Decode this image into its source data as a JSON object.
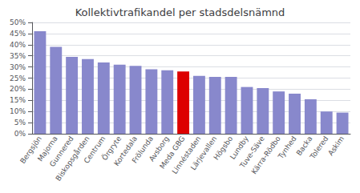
{
  "chart_data": {
    "type": "bar",
    "title": "Kollektivtrafikandel per stadsdelsnämnd",
    "categories": [
      "Bergsjön",
      "Majorna",
      "Gunnered",
      "Biskopsgården",
      "Centrum",
      "Örgryte",
      "Kortedala",
      "Frölunda",
      "Avsborg",
      "Meda GBG",
      "Linnéstaden",
      "Lärjevallen",
      "Högsbo",
      "Lundby",
      "Tuve-Säve",
      "Kärra-Rödbo",
      "Tynhed",
      "Backa",
      "Tolered",
      "Askim"
    ],
    "values": [
      46,
      39,
      34.5,
      33.5,
      32,
      31,
      30.5,
      29,
      28.5,
      28,
      26,
      25.5,
      25.5,
      21,
      20.5,
      19,
      18,
      15.5,
      10,
      9.5
    ],
    "colors": [
      "#8888cc",
      "#8888cc",
      "#8888cc",
      "#8888cc",
      "#8888cc",
      "#8888cc",
      "#8888cc",
      "#8888cc",
      "#8888cc",
      "#dd0000",
      "#8888cc",
      "#8888cc",
      "#8888cc",
      "#8888cc",
      "#8888cc",
      "#8888cc",
      "#8888cc",
      "#8888cc",
      "#8888cc",
      "#8888cc"
    ],
    "ylim": [
      0,
      50
    ],
    "yticks": [
      {
        "value": 0,
        "label": "0%"
      },
      {
        "value": 5,
        "label": "5%"
      },
      {
        "value": 10,
        "label": "10%"
      },
      {
        "value": 15,
        "label": "15%"
      },
      {
        "value": 20,
        "label": "20%"
      },
      {
        "value": 25,
        "label": "25%"
      },
      {
        "value": 30,
        "label": "30%"
      },
      {
        "value": 35,
        "label": "35%"
      },
      {
        "value": 40,
        "label": "40%"
      },
      {
        "value": 45,
        "label": "45%"
      },
      {
        "value": 50,
        "label": "50%"
      }
    ],
    "grid": true
  }
}
